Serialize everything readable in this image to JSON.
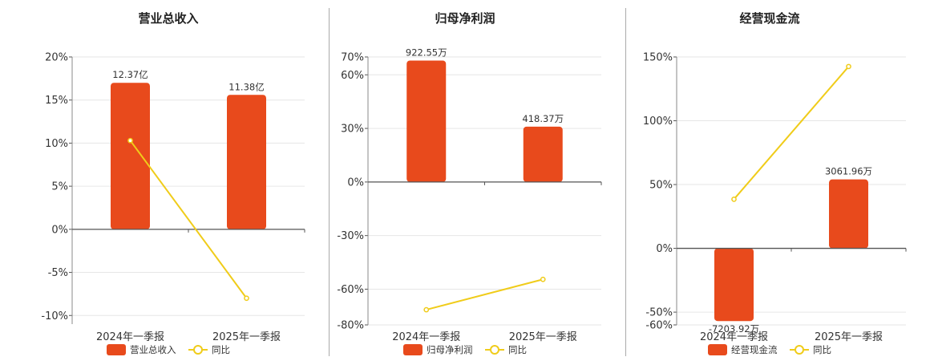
{
  "legend_labels": {
    "yoy": "同比"
  },
  "colors": {
    "bar": "#e84a1c",
    "line": "#f0cc1a",
    "axis": "#555555",
    "grid": "#e6e6e6"
  },
  "chart_data": [
    {
      "type": "bar",
      "title": "营业总收入",
      "bar_legend": "营业总收入",
      "categories": [
        "2024年一季报",
        "2025年一季报"
      ],
      "bar_values": [
        17.0,
        15.6
      ],
      "bar_labels": [
        "12.37亿",
        "11.38亿"
      ],
      "yoy_values": [
        10.3,
        -8.0
      ],
      "ylim": [
        -11,
        20
      ],
      "yticks": [
        20,
        15,
        10,
        5,
        0,
        -5,
        -10
      ],
      "ytick_labels": [
        "20%",
        "15%",
        "10%",
        "5%",
        "0%",
        "-5%",
        "-10%"
      ]
    },
    {
      "type": "bar",
      "title": "归母净利润",
      "bar_legend": "归母净利润",
      "categories": [
        "2024年一季报",
        "2025年一季报"
      ],
      "bar_values": [
        68.0,
        31.0
      ],
      "bar_labels": [
        "922.55万",
        "418.37万"
      ],
      "yoy_values": [
        -71.5,
        -54.5
      ],
      "ylim": [
        -80,
        70
      ],
      "yticks": [
        70,
        60,
        30,
        0,
        -30,
        -60,
        -80
      ],
      "ytick_labels": [
        "70%",
        "60%",
        "30%",
        "0%",
        "-30%",
        "-60%",
        "-80%"
      ]
    },
    {
      "type": "bar",
      "title": "经营现金流",
      "bar_legend": "经营现金流",
      "categories": [
        "2024年一季报",
        "2025年一季报"
      ],
      "bar_values": [
        -57.0,
        54.0
      ],
      "bar_labels": [
        "-7203.92万",
        "3061.96万"
      ],
      "yoy_values": [
        38.5,
        142.5
      ],
      "ylim": [
        -60,
        150
      ],
      "yticks": [
        150,
        100,
        50,
        0,
        -50,
        -60
      ],
      "ytick_labels": [
        "150%",
        "100%",
        "50%",
        "0%",
        "-50%",
        "-60%"
      ]
    }
  ]
}
